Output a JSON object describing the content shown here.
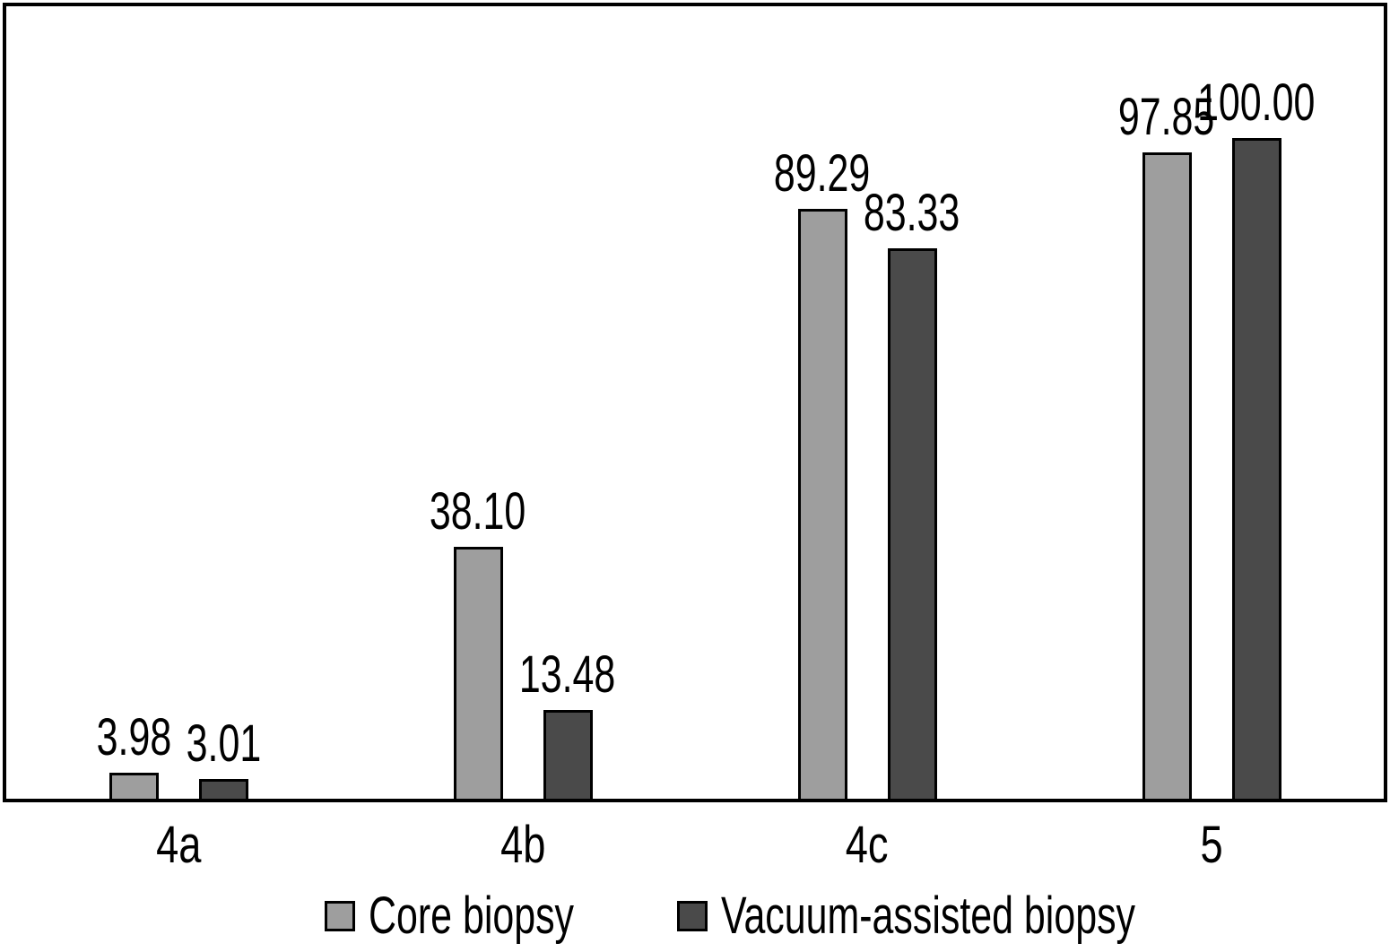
{
  "chart_data": {
    "type": "bar",
    "title": "",
    "xlabel": "",
    "ylabel": "",
    "categories": [
      "4a",
      "4b",
      "4c",
      "5"
    ],
    "series": [
      {
        "name": "Core biopsy",
        "color": "#9e9e9e",
        "values": [
          3.98,
          38.1,
          89.29,
          97.85
        ],
        "labels": [
          "3.98",
          "38.10",
          "89.29",
          "97.85"
        ]
      },
      {
        "name": "Vacuum-assisted biopsy",
        "color": "#4a4a4a",
        "values": [
          3.01,
          13.48,
          83.33,
          100.0
        ],
        "labels": [
          "3.01",
          "13.48",
          "83.33",
          "100.00"
        ]
      }
    ],
    "ylim": [
      0,
      120
    ],
    "y_axis_visible": false,
    "grid": false,
    "legend_position": "bottom",
    "bar_border_color": "#000000",
    "frame_color": "#000000",
    "background": "#ffffff",
    "text_color": "#000000"
  }
}
